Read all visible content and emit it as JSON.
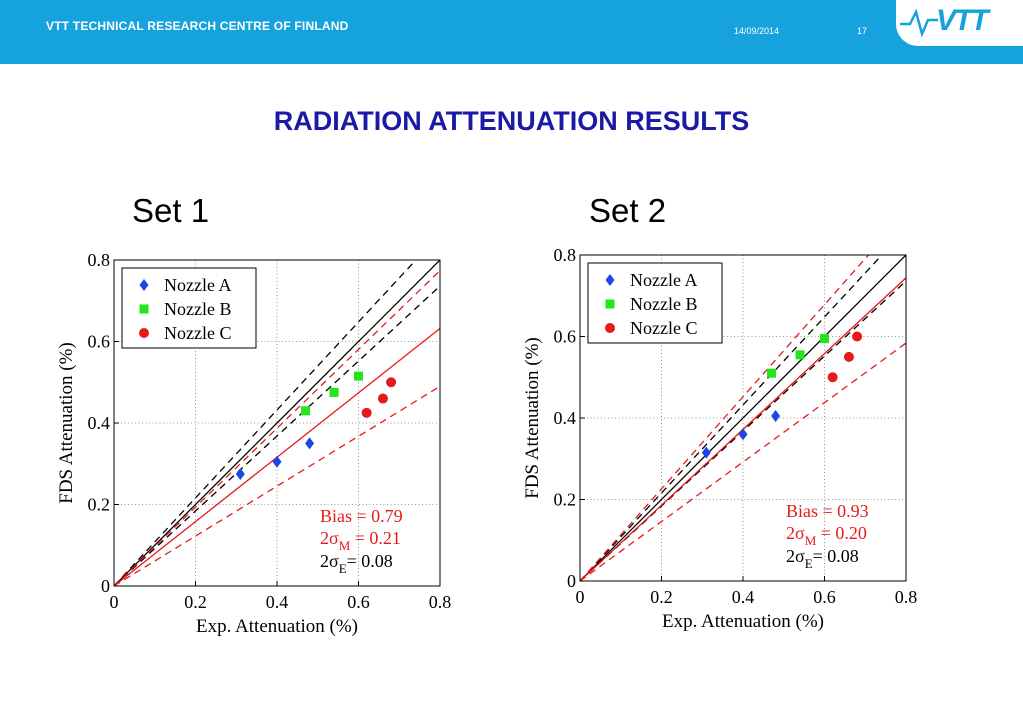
{
  "header": {
    "org": "VTT TECHNICAL RESEARCH CENTRE OF FINLAND",
    "date": "14/09/2014",
    "page": "17",
    "logo": "VTT",
    "bar_color": "#16a3dd"
  },
  "title": "RADIATION ATTENUATION RESULTS",
  "colors": {
    "nozzle_a": "#1a47e6",
    "nozzle_b": "#22e61a",
    "nozzle_c": "#e61a1a",
    "model": "#e61a1a",
    "experiment": "#000000"
  },
  "chart_data": [
    {
      "type": "scatter",
      "set_label": "Set 1",
      "xlabel": "Exp.  Attenuation (%)",
      "ylabel": "FDS Attenuation (%)",
      "xlim": [
        0,
        0.8
      ],
      "ylim": [
        0,
        0.8
      ],
      "xticks": [
        "0",
        "0.2",
        "0.4",
        "0.6",
        "0.8"
      ],
      "yticks": [
        "0",
        "0.2",
        "0.4",
        "0.6",
        "0.8"
      ],
      "grid": true,
      "legend_position": "top-left",
      "series": [
        {
          "name": "Nozzle A",
          "marker": "diamond",
          "color": "#1a47e6",
          "points": [
            [
              0.31,
              0.275
            ],
            [
              0.4,
              0.305
            ],
            [
              0.48,
              0.35
            ]
          ]
        },
        {
          "name": "Nozzle B",
          "marker": "square",
          "color": "#22e61a",
          "points": [
            [
              0.47,
              0.43
            ],
            [
              0.54,
              0.475
            ],
            [
              0.6,
              0.515
            ]
          ]
        },
        {
          "name": "Nozzle C",
          "marker": "circle",
          "color": "#e61a1a",
          "points": [
            [
              0.62,
              0.425
            ],
            [
              0.66,
              0.46
            ],
            [
              0.68,
              0.5
            ]
          ]
        }
      ],
      "bias": 0.79,
      "sigma_m2": 0.21,
      "sigma_e2": 0.08,
      "stats": {
        "bias": "Bias = 0.79",
        "sigma_m_pre": "2σ",
        "sigma_m_sub": "M",
        "sigma_m_val": " = 0.21",
        "sigma_e_pre": "2σ",
        "sigma_e_sub": "E",
        "sigma_e_val": "= 0.08"
      }
    },
    {
      "type": "scatter",
      "set_label": "Set 2",
      "xlabel": "Exp.  Attenuation (%)",
      "ylabel": "FDS Attenuation (%)",
      "xlim": [
        0,
        0.8
      ],
      "ylim": [
        0,
        0.8
      ],
      "xticks": [
        "0",
        "0.2",
        "0.4",
        "0.6",
        "0.8"
      ],
      "yticks": [
        "0",
        "0.2",
        "0.4",
        "0.6",
        "0.8"
      ],
      "grid": true,
      "legend_position": "top-left",
      "series": [
        {
          "name": "Nozzle A",
          "marker": "diamond",
          "color": "#1a47e6",
          "points": [
            [
              0.31,
              0.315
            ],
            [
              0.4,
              0.36
            ],
            [
              0.48,
              0.405
            ]
          ]
        },
        {
          "name": "Nozzle B",
          "marker": "square",
          "color": "#22e61a",
          "points": [
            [
              0.47,
              0.51
            ],
            [
              0.54,
              0.555
            ],
            [
              0.6,
              0.595
            ]
          ]
        },
        {
          "name": "Nozzle C",
          "marker": "circle",
          "color": "#e61a1a",
          "points": [
            [
              0.62,
              0.5
            ],
            [
              0.66,
              0.55
            ],
            [
              0.68,
              0.6
            ]
          ]
        }
      ],
      "bias": 0.93,
      "sigma_m2": 0.2,
      "sigma_e2": 0.08,
      "stats": {
        "bias": "Bias = 0.93",
        "sigma_m_pre": "2σ",
        "sigma_m_sub": "M",
        "sigma_m_val": " = 0.20",
        "sigma_e_pre": "2σ",
        "sigma_e_sub": "E",
        "sigma_e_val": "= 0.08"
      }
    }
  ]
}
